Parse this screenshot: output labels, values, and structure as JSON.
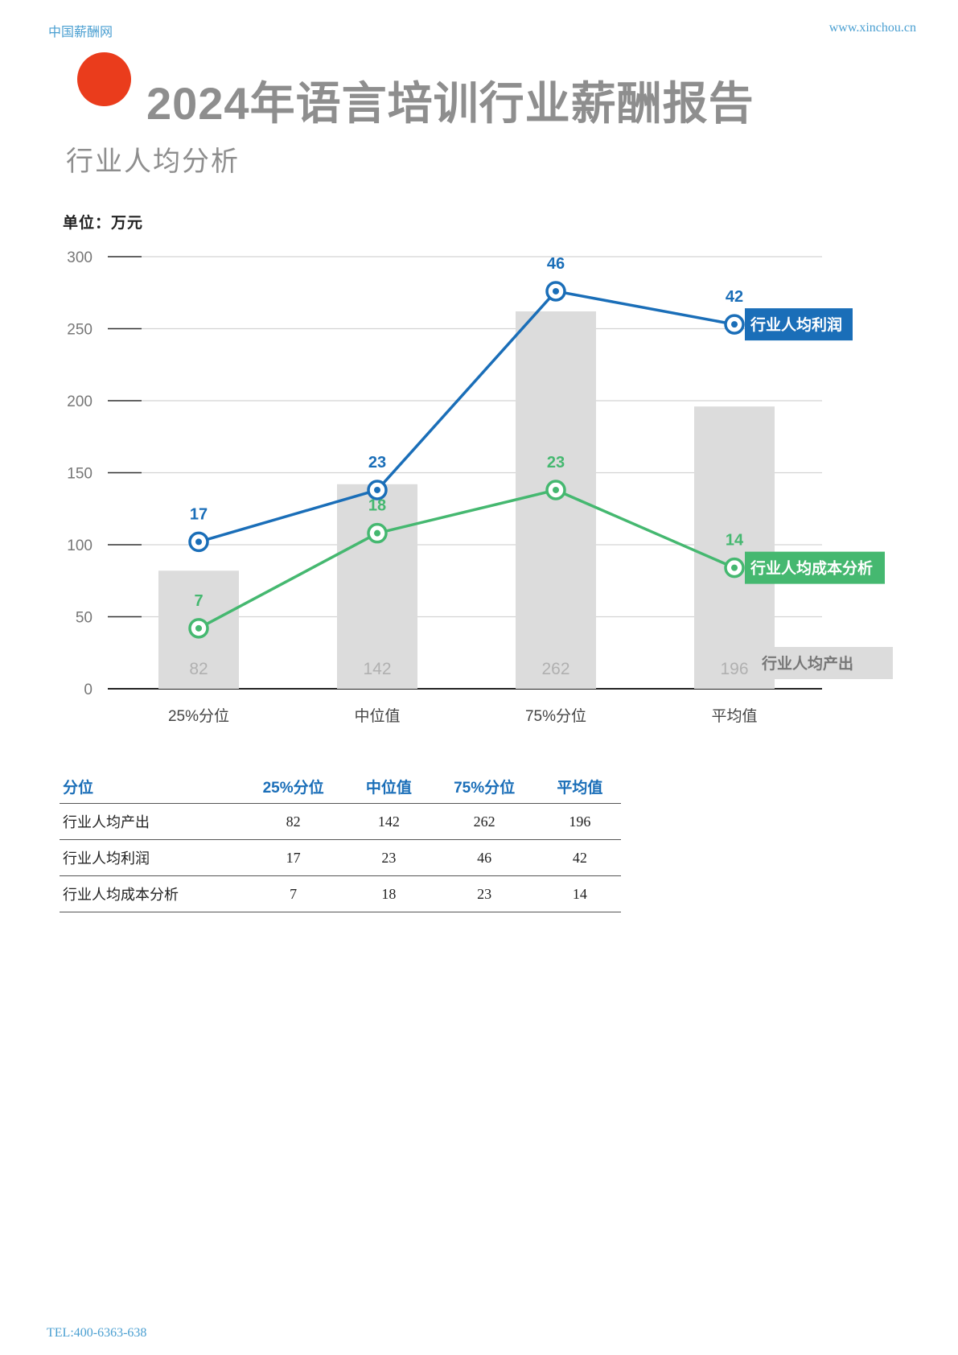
{
  "header": {
    "site_name": "中国薪酬网",
    "site_url": "www.xinchou.cn"
  },
  "title": "2024年语言培训行业薪酬报告",
  "subtitle": "行业人均分析",
  "footer": {
    "tel": "TEL:400-6363-638"
  },
  "colors": {
    "accent_dot": "#ea3c1c",
    "profit": "#1a6eb8",
    "cost": "#45b870",
    "bar": "#dcdcdc",
    "title_gray": "#8e8e8e"
  },
  "chart_data": {
    "type": "bar",
    "unit_label": "单位：万元",
    "categories": [
      "25%分位",
      "中位值",
      "75%分位",
      "平均值"
    ],
    "ylim": [
      0,
      300
    ],
    "yticks": [
      0,
      50,
      100,
      150,
      200,
      250,
      300
    ],
    "grid": true,
    "series": [
      {
        "name": "行业人均产出",
        "kind": "bar",
        "values": [
          82,
          142,
          262,
          196
        ],
        "plot_values": [
          82,
          142,
          262,
          196
        ],
        "color": "#dcdcdc"
      },
      {
        "name": "行业人均利润",
        "kind": "line",
        "values": [
          17,
          23,
          46,
          42
        ],
        "plot_values": [
          102,
          138,
          276,
          253
        ],
        "color": "#1a6eb8"
      },
      {
        "name": "行业人均成本分析",
        "kind": "line",
        "values": [
          7,
          18,
          23,
          14
        ],
        "plot_values": [
          42,
          108,
          138,
          84
        ],
        "color": "#45b870"
      }
    ]
  },
  "table": {
    "headers": [
      "分位",
      "25%分位",
      "中位值",
      "75%分位",
      "平均值"
    ],
    "rows": [
      {
        "label": "行业人均产出",
        "cells": [
          "82",
          "142",
          "262",
          "196"
        ]
      },
      {
        "label": "行业人均利润",
        "cells": [
          "17",
          "23",
          "46",
          "42"
        ]
      },
      {
        "label": "行业人均成本分析",
        "cells": [
          "7",
          "18",
          "23",
          "14"
        ]
      }
    ]
  }
}
